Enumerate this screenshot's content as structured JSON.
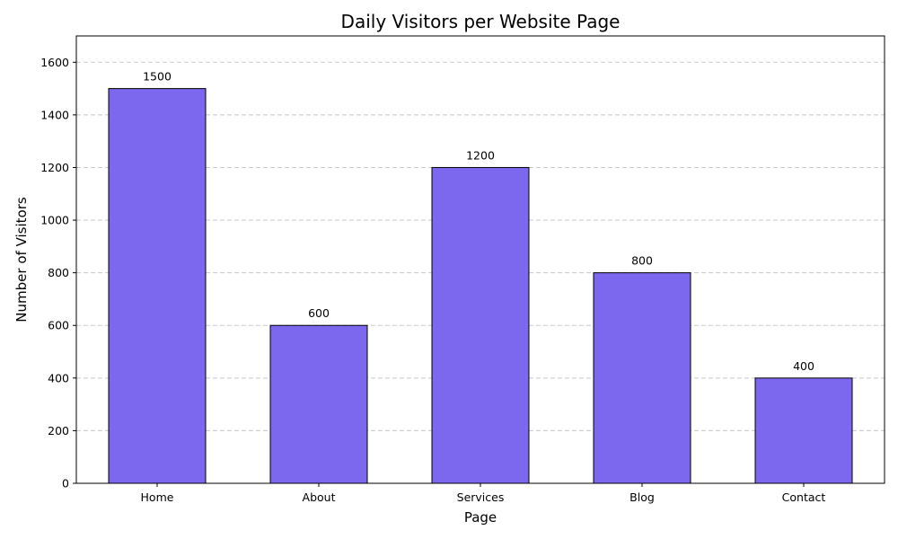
{
  "chart_data": {
    "type": "bar",
    "title": "Daily Visitors per Website Page",
    "xlabel": "Page",
    "ylabel": "Number of Visitors",
    "categories": [
      "Home",
      "About",
      "Services",
      "Blog",
      "Contact"
    ],
    "values": [
      1500,
      600,
      1200,
      800,
      400
    ],
    "data_labels": [
      "1500",
      "600",
      "1200",
      "800",
      "400"
    ],
    "ylim": [
      0,
      1700
    ],
    "yticks": [
      0,
      200,
      400,
      600,
      800,
      1000,
      1200,
      1400,
      1600
    ],
    "grid": "y-dashed",
    "bar_color": "#7b68ee",
    "edge_color": "#000000"
  }
}
